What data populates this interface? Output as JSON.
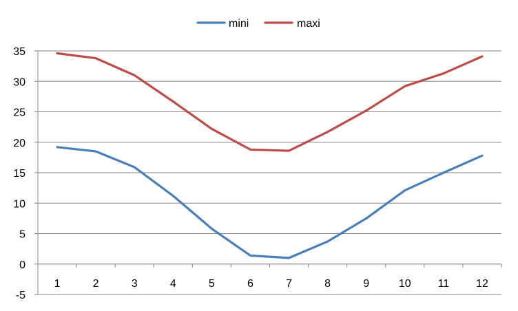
{
  "chart_data": {
    "type": "line",
    "x": [
      1,
      2,
      3,
      4,
      5,
      6,
      7,
      8,
      9,
      10,
      11,
      12
    ],
    "series": [
      {
        "name": "mini",
        "color": "#4a7ebb",
        "values": [
          19.2,
          18.5,
          15.9,
          11.2,
          5.8,
          1.4,
          1.0,
          3.7,
          7.5,
          12.1,
          15.0,
          17.8
        ]
      },
      {
        "name": "maxi",
        "color": "#be4b48",
        "values": [
          34.6,
          33.8,
          31.0,
          26.7,
          22.2,
          18.8,
          18.6,
          21.7,
          25.2,
          29.2,
          31.3,
          34.1
        ]
      }
    ],
    "ylim": [
      -5,
      35
    ],
    "yticks": [
      "-5",
      "0",
      "5",
      "10",
      "15",
      "20",
      "25",
      "30",
      "35"
    ],
    "xticks": [
      "1",
      "2",
      "3",
      "4",
      "5",
      "6",
      "7",
      "8",
      "9",
      "10",
      "11",
      "12"
    ],
    "grid": true,
    "legend_position": "top",
    "title": "",
    "xlabel": "",
    "ylabel": ""
  }
}
